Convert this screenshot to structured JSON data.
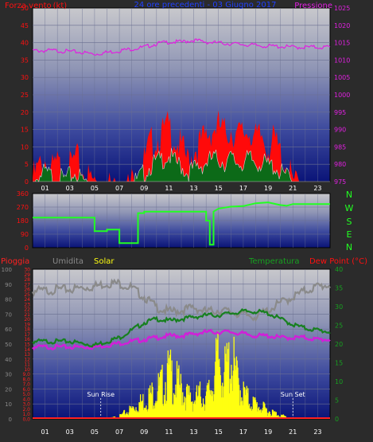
{
  "colors": {
    "background": "#2b2b2b",
    "wind": "#ff1010",
    "gust_fill": "#ff0a0a",
    "avg_fill": "#0c6a18",
    "pressure": "#e020e0",
    "direction": "#22ff22",
    "rain": "#ff2020",
    "humidity": "#8a8a8a",
    "solar": "#ffff10",
    "temperature": "#17801f",
    "dew": "#d020d8",
    "title": "#2040ff"
  },
  "chart_data": [
    {
      "type": "area",
      "title": "24 ore precedenti - 03 Giugno 2017",
      "ylabel_left": "Forza vento",
      "ylabel_left_unit": "(kt)",
      "ylabel_right": "Pressione",
      "ylim_left": [
        0,
        50
      ],
      "ylim_right": [
        975,
        1025
      ],
      "left_ticks": [
        "0",
        "5",
        "10",
        "15",
        "20",
        "25",
        "30",
        "35",
        "40",
        "45",
        "50"
      ],
      "right_ticks": [
        "975",
        "980",
        "985",
        "990",
        "995",
        "1000",
        "1005",
        "1010",
        "1015",
        "1020",
        "1025"
      ],
      "x_ticks": [
        "01",
        "03",
        "05",
        "07",
        "09",
        "11",
        "13",
        "15",
        "17",
        "19",
        "21",
        "23"
      ],
      "grid": true,
      "series": [
        {
          "name": "Forza vento",
          "role": "gust",
          "x": [
            0,
            0.5,
            1,
            1.5,
            2,
            2.5,
            3,
            3.5,
            4,
            4.5,
            5,
            5.5,
            6,
            6.5,
            7,
            7.5,
            8,
            8.5,
            9,
            9.5,
            10,
            10.5,
            11,
            11.5,
            12,
            12.5,
            13,
            13.5,
            14,
            14.5,
            15,
            15.5,
            16,
            16.5,
            17,
            17.5,
            18,
            18.5,
            19,
            19.5,
            20,
            20.5,
            21,
            21.5,
            22,
            22.5,
            23,
            23.5,
            24
          ],
          "values": [
            3,
            6,
            8,
            5,
            7,
            4,
            6,
            9,
            5,
            3,
            2,
            1,
            1,
            0,
            1,
            0,
            2,
            4,
            8,
            13,
            14,
            16,
            18,
            14,
            12,
            8,
            11,
            13,
            15,
            17,
            18,
            16,
            17,
            15,
            16,
            17,
            14,
            15,
            12,
            14,
            10,
            6,
            2,
            0,
            0,
            0,
            0,
            0,
            0
          ]
        },
        {
          "name": "",
          "role": "average",
          "x": [
            0,
            0.5,
            1,
            1.5,
            2,
            2.5,
            3,
            3.5,
            4,
            4.5,
            5,
            5.5,
            6,
            6.5,
            7,
            7.5,
            8,
            8.5,
            9,
            9.5,
            10,
            10.5,
            11,
            11.5,
            12,
            12.5,
            13,
            13.5,
            14,
            14.5,
            15,
            15.5,
            16,
            16.5,
            17,
            17.5,
            18,
            18.5,
            19,
            19.5,
            20,
            20.5,
            21,
            21.5,
            22,
            22.5,
            23,
            23.5,
            24
          ],
          "values": [
            1,
            3,
            4,
            3,
            3,
            2,
            3,
            4,
            2,
            1,
            1,
            0,
            0,
            0,
            0,
            0,
            1,
            2,
            4,
            6,
            7,
            8,
            9,
            7,
            6,
            4,
            5,
            6,
            7,
            8,
            8,
            7,
            8,
            7,
            7,
            8,
            7,
            7,
            6,
            6,
            4,
            3,
            1,
            0,
            0,
            0,
            0,
            0,
            0
          ]
        },
        {
          "name": "Pressione",
          "role": "pressure",
          "x": [
            0,
            2,
            4,
            5,
            6,
            7,
            8,
            9,
            10,
            11,
            12,
            13,
            14,
            15,
            16,
            17,
            18,
            19,
            20,
            21,
            22,
            23,
            24
          ],
          "values": [
            1013,
            1013,
            1012.5,
            1012,
            1012.5,
            1013,
            1013.5,
            1014,
            1015,
            1015.5,
            1015.5,
            1016,
            1015.5,
            1015.2,
            1015,
            1014.8,
            1014.5,
            1014.3,
            1014.2,
            1014,
            1014,
            1014,
            1014
          ]
        }
      ]
    },
    {
      "type": "line",
      "ylabel_right": [
        "N",
        "W",
        "S",
        "E",
        "N"
      ],
      "ylim": [
        0,
        360
      ],
      "left_ticks": [
        "0",
        "90",
        "180",
        "270",
        "360"
      ],
      "grid": true,
      "series": [
        {
          "name": "",
          "role": "direction",
          "x": [
            0,
            5,
            5,
            6,
            6,
            7,
            7,
            8.5,
            8.5,
            9,
            9,
            14,
            14,
            14.3,
            14.3,
            14.6,
            14.6,
            15,
            16,
            17,
            18,
            19,
            20,
            20.5,
            21,
            24
          ],
          "values": [
            200,
            200,
            110,
            110,
            120,
            120,
            30,
            30,
            230,
            230,
            240,
            240,
            180,
            180,
            20,
            20,
            240,
            260,
            270,
            280,
            290,
            300,
            280,
            300,
            290,
            290
          ]
        }
      ]
    },
    {
      "type": "area",
      "ylabel_rain": "Pioggia",
      "ylabel_humidity": "Umidita",
      "ylabel_solar": "Solar",
      "ylabel_temp": "Temperatura",
      "ylabel_dew": "Dew Point (°C)",
      "humidity_ticks": [
        "0",
        "10",
        "20",
        "30",
        "40",
        "50",
        "60",
        "70",
        "80",
        "90",
        "100"
      ],
      "rain_ticks": [
        "0,0",
        "1,0",
        "2,0",
        "3,0",
        "4,0",
        "5,0",
        "6,0",
        "7,0",
        "8,0",
        "9,0",
        "10",
        "11",
        "12",
        "13",
        "14",
        "15",
        "16",
        "17",
        "18",
        "19",
        "20",
        "21",
        "22",
        "23",
        "24",
        "25",
        "26",
        "27",
        "28",
        "29",
        "30"
      ],
      "temp_ticks": [
        "0",
        "5",
        "10",
        "15",
        "20",
        "25",
        "30",
        "35",
        "40"
      ],
      "sun_rise_label": "Sun Rise",
      "sun_set_label": "Sun Set",
      "sun_rise": 5.5,
      "sun_set": 21,
      "series": [
        {
          "name": "Umidita",
          "role": "humidity",
          "x": [
            0,
            1,
            2,
            3,
            4,
            5,
            6,
            7,
            8,
            9,
            10,
            11,
            12,
            13,
            14,
            15,
            16,
            17,
            18,
            19,
            20,
            21,
            22,
            23,
            24
          ],
          "values": [
            87,
            87,
            88,
            88,
            89,
            90,
            92,
            92,
            89,
            83,
            76,
            73,
            74,
            76,
            73,
            74,
            73,
            71,
            70,
            74,
            79,
            83,
            87,
            90,
            91
          ]
        },
        {
          "name": "Temperatura",
          "role": "temperature",
          "x": [
            0,
            1,
            2,
            3,
            4,
            5,
            6,
            7,
            8,
            9,
            10,
            11,
            12,
            13,
            14,
            15,
            16,
            17,
            18,
            19,
            20,
            21,
            22,
            23,
            24
          ],
          "values": [
            21,
            21,
            21,
            21,
            20.5,
            20,
            21,
            22,
            24,
            26,
            27,
            26.5,
            27,
            27.5,
            28,
            28,
            28.5,
            29,
            29,
            28.5,
            27,
            25.5,
            24.5,
            24,
            23.5
          ]
        },
        {
          "name": "Dew Point (°C)",
          "role": "dew",
          "x": [
            0,
            1,
            2,
            3,
            4,
            5,
            6,
            7,
            8,
            9,
            10,
            11,
            12,
            13,
            14,
            15,
            16,
            17,
            18,
            19,
            20,
            21,
            22,
            23,
            24
          ],
          "values": [
            19.5,
            19.5,
            19.5,
            19.5,
            19.5,
            19.5,
            20,
            20.5,
            21,
            21.5,
            22,
            22.5,
            22.5,
            23,
            23.5,
            23.5,
            23.5,
            23,
            22.5,
            22.5,
            22,
            22,
            22,
            21.5,
            21.5
          ]
        },
        {
          "name": "Solar",
          "role": "solar",
          "x": [
            5.5,
            6,
            7,
            8,
            9,
            10,
            10.5,
            11,
            11.5,
            12,
            12.5,
            13,
            13.5,
            14,
            14.5,
            15,
            15.5,
            16,
            16.5,
            17,
            17.5,
            18,
            19,
            20,
            21
          ],
          "values": [
            0,
            5,
            40,
            160,
            300,
            450,
            550,
            720,
            600,
            480,
            360,
            300,
            380,
            330,
            560,
            950,
            700,
            990,
            620,
            410,
            290,
            230,
            130,
            60,
            0
          ]
        },
        {
          "name": "Pioggia",
          "role": "rain",
          "x": [
            0,
            24
          ],
          "values": [
            0,
            0
          ]
        }
      ]
    }
  ]
}
